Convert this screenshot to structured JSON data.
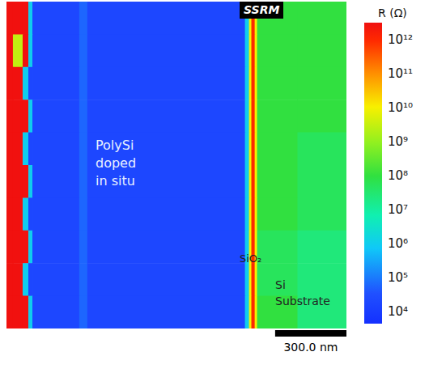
{
  "chart_data": {
    "type": "heatmap",
    "title": "R (Ω)",
    "tick_labels": false,
    "log": true,
    "xlim": [
      0,
      1430
    ],
    "ylim": [
      0,
      1400
    ],
    "x_edges": [
      0,
      27,
      68,
      92,
      109,
      306,
      340,
      1003,
      1020,
      1030,
      1044,
      1054,
      1224,
      1430
    ],
    "y_edges": [
      0,
      140,
      280,
      420,
      560,
      700,
      840,
      980,
      1120,
      1260,
      1400
    ],
    "cells": [
      [
        3000000000000,
        3000000000000,
        3000000000000,
        1000000,
        20000,
        60000,
        20000,
        1000000,
        10000000000,
        1000000000000,
        10000000000,
        100000000,
        100000000
      ],
      [
        3000000000000,
        3000000000,
        3000000000000,
        1000000,
        20000,
        60000,
        20000,
        1000000,
        10000000000,
        1000000000000,
        10000000000,
        100000000,
        100000000
      ],
      [
        3000000000000,
        3000000000000,
        1000000,
        20000,
        20000,
        60000,
        20000,
        1000000,
        10000000000,
        1000000000000,
        10000000000,
        100000000,
        100000000
      ],
      [
        3000000000000,
        3000000000000,
        3000000000000,
        1000000,
        20000,
        60000,
        20000,
        1000000,
        10000000000,
        1000000000000,
        10000000000,
        100000000,
        100000000
      ],
      [
        3000000000000,
        3000000000000,
        1000000,
        20000,
        20000,
        60000,
        20000,
        1000000,
        10000000000,
        1000000000000,
        10000000000,
        100000000,
        50000000
      ],
      [
        3000000000000,
        3000000000000,
        3000000000000,
        1000000,
        20000,
        60000,
        20000,
        1000000,
        10000000000,
        1000000000000,
        10000000000,
        100000000,
        50000000
      ],
      [
        3000000000000,
        3000000000000,
        1000000,
        20000,
        20000,
        60000,
        20000,
        1000000,
        10000000000,
        1000000000000,
        10000000000,
        100000000,
        50000000
      ],
      [
        3000000000000,
        3000000000000,
        3000000000000,
        1000000,
        20000,
        60000,
        20000,
        1000000,
        10000000000,
        1000000000000,
        10000000000,
        50000000,
        25000000
      ],
      [
        3000000000000,
        3000000000000,
        1000000,
        20000,
        20000,
        60000,
        20000,
        1000000,
        10000000000,
        1000000000000,
        10000000000,
        50000000,
        25000000
      ],
      [
        3000000000000,
        3000000000000,
        3000000000000,
        1000000,
        20000,
        60000,
        20000,
        1000000,
        10000000000,
        1000000000000,
        10000000000,
        100000000,
        25000000
      ]
    ],
    "colorbar": {
      "range": [
        4500,
        3200000000000
      ],
      "ticks": [
        {
          "value": 10000,
          "label": "10⁴"
        },
        {
          "value": 100000,
          "label": "10⁵"
        },
        {
          "value": 1000000,
          "label": "10⁶"
        },
        {
          "value": 10000000,
          "label": "10⁷"
        },
        {
          "value": 100000000,
          "label": "10⁸"
        },
        {
          "value": 1000000000,
          "label": "10⁹"
        },
        {
          "value": 10000000000,
          "label": "10¹⁰"
        },
        {
          "value": 100000000000,
          "label": "10¹¹"
        },
        {
          "value": 1000000000000,
          "label": "10¹²"
        }
      ]
    },
    "annotations": [
      "SSRM",
      "PolySi\ndoped\nin situ",
      "SiO₂",
      "Si\nSubstrate"
    ],
    "scale_bar": {
      "length": 300,
      "label": "300.0 nm"
    }
  }
}
